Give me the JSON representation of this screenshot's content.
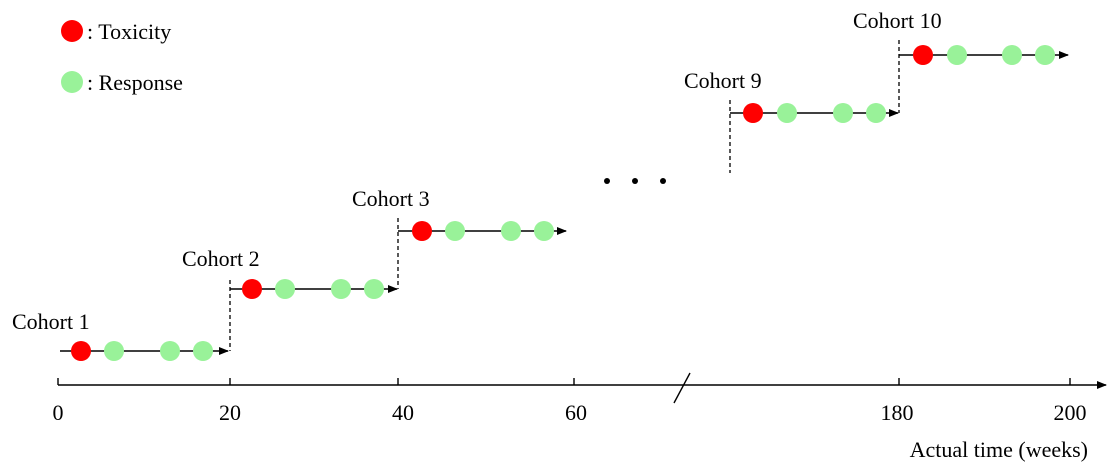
{
  "legend": {
    "toxicity_label": ": Toxicity",
    "response_label": ": Response"
  },
  "colors": {
    "toxicity": "#ff0000",
    "response": "#99f299",
    "line": "#000000"
  },
  "cohorts": [
    {
      "label": "Cohort 1",
      "start_week": 0,
      "end_week": 20
    },
    {
      "label": "Cohort 2",
      "start_week": 20,
      "end_week": 40
    },
    {
      "label": "Cohort 3",
      "start_week": 40,
      "end_week": 60
    },
    {
      "label": "Cohort 9",
      "start_week": 160,
      "end_week": 180
    },
    {
      "label": "Cohort 10",
      "start_week": 180,
      "end_week": 200
    }
  ],
  "ellipsis": "...",
  "axis": {
    "label": "Actual time (weeks)",
    "ticks": [
      "0",
      "20",
      "40",
      "60",
      "180",
      "200"
    ],
    "axis_break": true
  }
}
